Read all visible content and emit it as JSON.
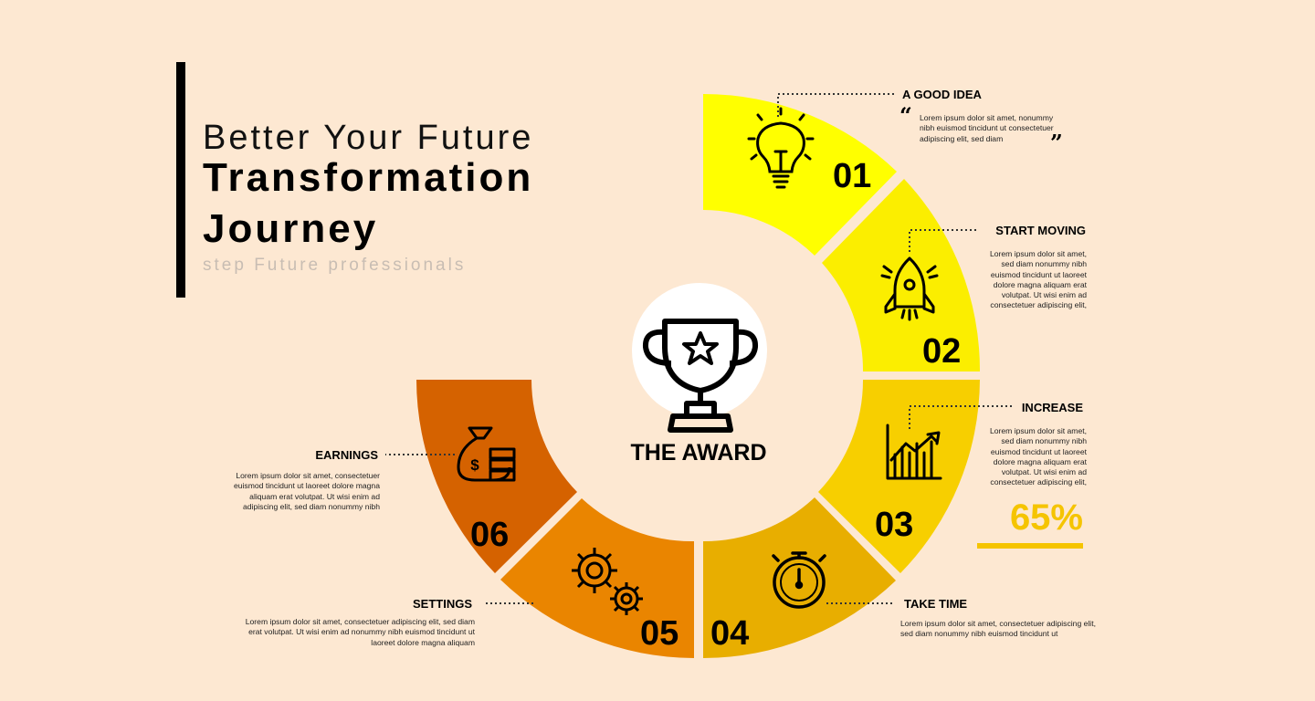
{
  "header": {
    "line1": "Better Your Future",
    "line2": "Transformation",
    "line3": "Journey",
    "subtitle": "step Future professionals"
  },
  "center": {
    "label": "THE AWARD"
  },
  "steps": [
    {
      "number": "01",
      "title": "A GOOD IDEA",
      "color": "#ffff00",
      "icon": "lightbulb-icon",
      "text": "Lorem ipsum dolor sit amet, nonummy nibh euismod tincidunt ut consectetuer adipiscing elit, sed diam"
    },
    {
      "number": "02",
      "title": "START MOVING",
      "color": "#fbee00",
      "icon": "rocket-icon",
      "text": "Lorem ipsum dolor sit amet, sed diam nonummy nibh euismod tincidunt ut laoreet dolore magna aliquam erat volutpat. Ut wisi enim ad consectetuer adipiscing elit,"
    },
    {
      "number": "03",
      "title": "INCREASE",
      "color": "#f7cf00",
      "icon": "growth-chart-icon",
      "text": "Lorem ipsum dolor sit amet, sed diam nonummy nibh euismod tincidunt ut laoreet dolore magna aliquam erat volutpat. Ut wisi enim ad consectetuer adipiscing elit,",
      "percent": "65%"
    },
    {
      "number": "04",
      "title": "TAKE TIME",
      "color": "#e8ae00",
      "icon": "stopwatch-icon",
      "text": "Lorem ipsum dolor sit amet, consectetuer adipiscing elit, sed diam nonummy nibh euismod tincidunt ut"
    },
    {
      "number": "05",
      "title": "SETTINGS",
      "color": "#ea8500",
      "icon": "gears-icon",
      "text": "Lorem ipsum dolor sit amet, consectetuer adipiscing elit, sed diam erat volutpat. Ut wisi enim ad nonummy nibh euismod tincidunt ut laoreet dolore magna aliquam"
    },
    {
      "number": "06",
      "title": "EARNINGS",
      "color": "#d56200",
      "icon": "money-bag-icon",
      "text": "Lorem ipsum dolor sit amet, consectetuer euismod tincidunt ut laoreet dolore magna aliquam erat volutpat. Ut wisi enim ad adipiscing elit, sed diam nonummy nibh"
    }
  ],
  "colors": {
    "background": "#fde8d2",
    "accent": "#f5c400",
    "text": "#000000"
  }
}
